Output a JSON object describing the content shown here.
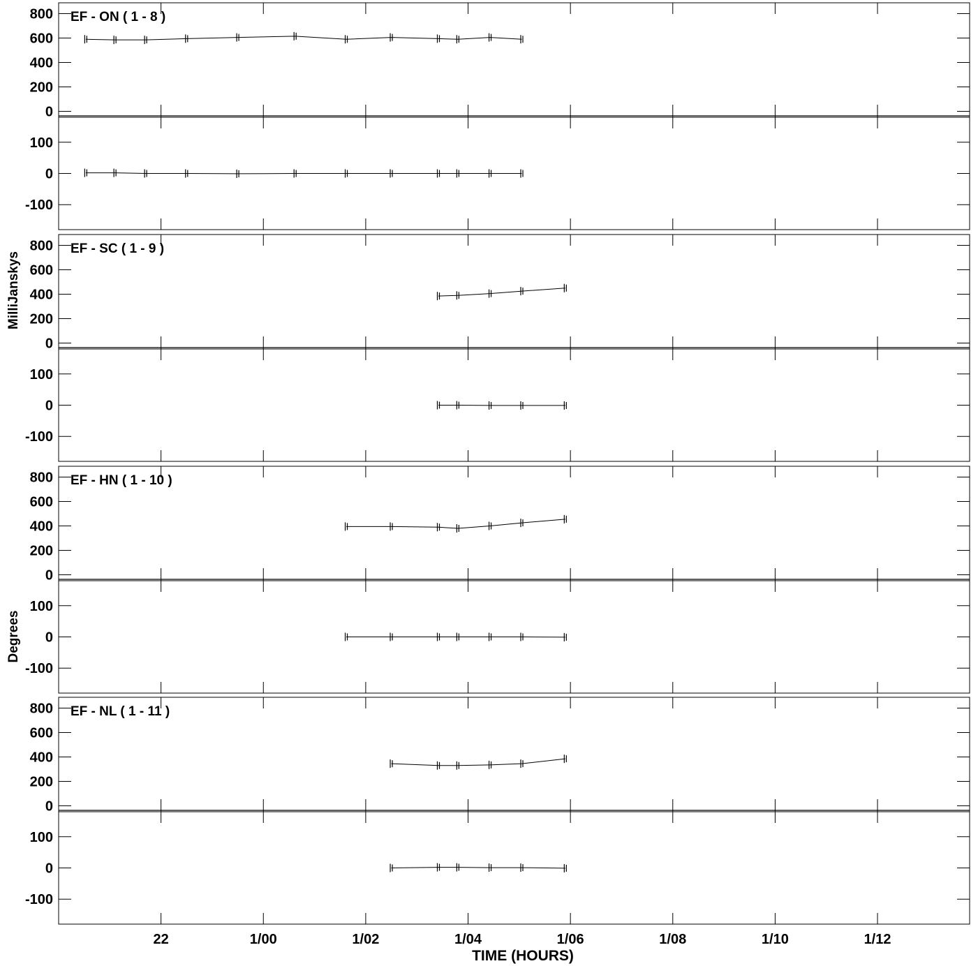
{
  "chart_data": [
    {
      "type": "line",
      "title": "EF - ON ( 1 - 8 )",
      "amp": {
        "ylim": [
          -20,
          820
        ],
        "yticks": [
          0,
          200,
          400,
          600,
          800
        ],
        "x": [
          20.53,
          21.1,
          21.7,
          22.5,
          23.5,
          24.62,
          25.62,
          26.5,
          27.42,
          27.8,
          28.43,
          29.05
        ],
        "y": [
          590,
          585,
          585,
          595,
          605,
          615,
          590,
          605,
          595,
          590,
          605,
          590
        ]
      },
      "phase": {
        "ylim": [
          -180,
          180
        ],
        "yticks": [
          -100,
          0,
          100
        ],
        "x": [
          20.53,
          21.1,
          21.7,
          22.5,
          23.5,
          24.62,
          25.62,
          26.5,
          27.42,
          27.8,
          28.43,
          29.05
        ],
        "y": [
          2,
          2,
          0,
          0,
          -1,
          0,
          0,
          0,
          0,
          0,
          0,
          0
        ]
      }
    },
    {
      "type": "line",
      "title": "EF - SC ( 1 - 9 )",
      "amp": {
        "ylim": [
          -20,
          820
        ],
        "yticks": [
          0,
          200,
          400,
          600,
          800
        ],
        "x": [
          27.42,
          27.8,
          28.43,
          29.05,
          29.9
        ],
        "y": [
          385,
          390,
          405,
          425,
          450
        ]
      },
      "phase": {
        "ylim": [
          -180,
          180
        ],
        "yticks": [
          -100,
          0,
          100
        ],
        "x": [
          27.42,
          27.8,
          28.43,
          29.05,
          29.9
        ],
        "y": [
          0,
          0,
          -1,
          -1,
          -1
        ]
      }
    },
    {
      "type": "line",
      "title": "EF - HN ( 1 - 10 )",
      "amp": {
        "ylim": [
          -20,
          820
        ],
        "yticks": [
          0,
          200,
          400,
          600,
          800
        ],
        "x": [
          25.62,
          26.5,
          27.42,
          27.8,
          28.43,
          29.05,
          29.9
        ],
        "y": [
          395,
          395,
          390,
          380,
          400,
          425,
          455
        ]
      },
      "phase": {
        "ylim": [
          -180,
          180
        ],
        "yticks": [
          -100,
          0,
          100
        ],
        "x": [
          25.62,
          26.5,
          27.42,
          27.8,
          28.43,
          29.05,
          29.9
        ],
        "y": [
          0,
          0,
          0,
          0,
          0,
          0,
          -1
        ]
      }
    },
    {
      "type": "line",
      "title": "EF - NL ( 1 - 11 )",
      "amp": {
        "ylim": [
          -20,
          820
        ],
        "yticks": [
          0,
          200,
          400,
          600,
          800
        ],
        "x": [
          26.5,
          27.42,
          27.8,
          28.43,
          29.05,
          29.9
        ],
        "y": [
          345,
          330,
          330,
          335,
          345,
          385
        ]
      },
      "phase": {
        "ylim": [
          -180,
          180
        ],
        "yticks": [
          -100,
          0,
          100
        ],
        "x": [
          26.5,
          27.42,
          27.8,
          28.43,
          29.05,
          29.9
        ],
        "y": [
          0,
          2,
          2,
          1,
          1,
          -1
        ]
      }
    }
  ],
  "xaxis": {
    "label": "TIME (HOURS)",
    "xlim": [
      20.0,
      37.8
    ],
    "ticks": [
      22,
      24,
      26,
      28,
      30,
      32,
      34,
      36
    ],
    "tick_labels": [
      "22",
      "1/00",
      "1/02",
      "1/04",
      "1/06",
      "1/08",
      "1/10",
      "1/12"
    ]
  },
  "ylabels": {
    "amplitude": "MilliJanskys",
    "phase": "Degrees"
  }
}
